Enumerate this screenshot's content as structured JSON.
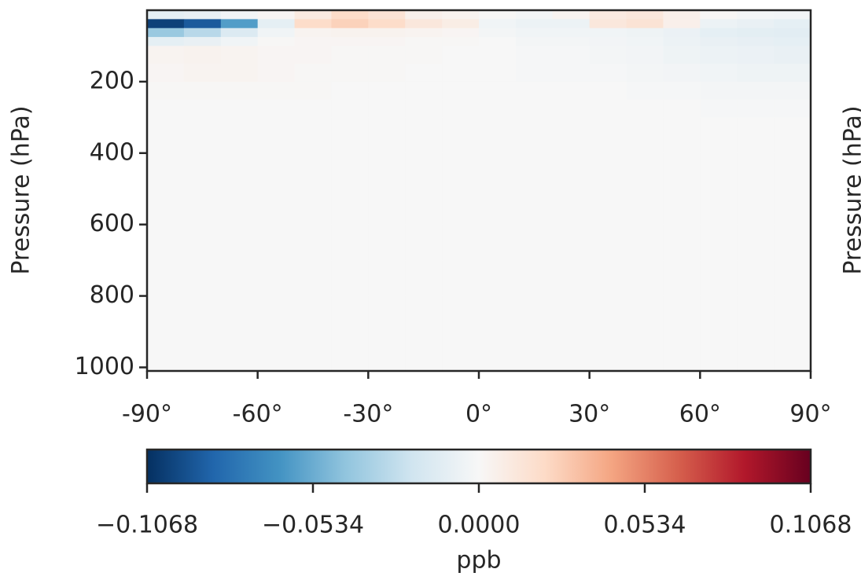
{
  "chart_data": {
    "type": "heatmap",
    "ylabel": "Pressure (hPa)",
    "neighbor_ylabel": "Pressure (hPa)",
    "xbins": [
      -90,
      -80,
      -70,
      -60,
      -50,
      -40,
      -30,
      -20,
      -10,
      0,
      10,
      20,
      30,
      40,
      50,
      60,
      70,
      80,
      90
    ],
    "ybins": [
      0,
      25,
      50,
      75,
      100,
      150,
      200,
      250,
      300,
      400,
      500,
      600,
      700,
      800,
      900,
      1010
    ],
    "values": [
      [
        -0.01,
        -0.008,
        -0.003,
        0.002,
        0.01,
        0.02,
        0.015,
        0.005,
        0.003,
        0.001,
        -0.002,
        0.003,
        0.01,
        0.012,
        0.006,
        0.001,
        -0.002,
        -0.003
      ],
      [
        -0.1,
        -0.09,
        -0.06,
        -0.01,
        0.02,
        0.025,
        0.02,
        0.012,
        0.008,
        -0.004,
        -0.006,
        -0.006,
        0.012,
        0.015,
        0.006,
        -0.006,
        -0.008,
        -0.01
      ],
      [
        -0.04,
        -0.03,
        -0.015,
        -0.004,
        0.003,
        0.004,
        0.004,
        0.003,
        0.002,
        -0.002,
        -0.004,
        -0.004,
        -0.004,
        -0.005,
        -0.007,
        -0.01,
        -0.011,
        -0.012
      ],
      [
        -0.01,
        -0.008,
        -0.004,
        0.001,
        0.002,
        0.002,
        0.002,
        0.001,
        0.001,
        0,
        -0.002,
        -0.002,
        -0.003,
        -0.004,
        -0.006,
        -0.008,
        -0.009,
        -0.01
      ],
      [
        0.003,
        0.004,
        0.003,
        0.002,
        0.002,
        0.001,
        0.001,
        0.001,
        0,
        0,
        -0.001,
        -0.001,
        -0.002,
        -0.003,
        -0.005,
        -0.006,
        -0.007,
        -0.008
      ],
      [
        0.002,
        0.003,
        0.003,
        0.002,
        0.001,
        0.001,
        0.001,
        0,
        0,
        0,
        -0.001,
        -0.001,
        -0.001,
        -0.002,
        -0.003,
        -0.004,
        -0.005,
        -0.005
      ],
      [
        0.001,
        0.001,
        0.001,
        0.001,
        0.001,
        0,
        0,
        0,
        0,
        0,
        0,
        0,
        0,
        -0.001,
        -0.001,
        -0.002,
        -0.002,
        -0.002
      ],
      [
        0,
        0,
        0,
        0,
        0,
        0,
        0,
        0,
        0,
        0,
        0,
        0,
        0,
        0,
        0,
        -0.001,
        -0.001,
        -0.001
      ],
      [
        0,
        0,
        0,
        0,
        0,
        0,
        0,
        0,
        0,
        0,
        0,
        0,
        0,
        0,
        0,
        0,
        0,
        0
      ],
      [
        0,
        0,
        0,
        0,
        0,
        0,
        0,
        0,
        0,
        0,
        0,
        0,
        0,
        0,
        0,
        0,
        0,
        0
      ],
      [
        0,
        0,
        0,
        0,
        0,
        0,
        0,
        0,
        0,
        0,
        0,
        0,
        0,
        0,
        0,
        0,
        0,
        0
      ],
      [
        0,
        0,
        0,
        0,
        0,
        0,
        0,
        0,
        0,
        0,
        0,
        0,
        0,
        0,
        0,
        0,
        0,
        0
      ],
      [
        0,
        0,
        0,
        0,
        0,
        0,
        0,
        0,
        0,
        0,
        0,
        0,
        0,
        0,
        0,
        0,
        0,
        0
      ],
      [
        0,
        0,
        0,
        0,
        0,
        0,
        0,
        0,
        0,
        0,
        0,
        0,
        0,
        0,
        0,
        0,
        0,
        0
      ],
      [
        0,
        0,
        0,
        0,
        0,
        0,
        0,
        0,
        0,
        0,
        0,
        0,
        0,
        0,
        0,
        0,
        0,
        0
      ]
    ],
    "xlim": [
      -90,
      90
    ],
    "xticks": [
      {
        "value": -90,
        "label": "-90°"
      },
      {
        "value": -60,
        "label": "-60°"
      },
      {
        "value": -30,
        "label": "-30°"
      },
      {
        "value": 0,
        "label": "0°"
      },
      {
        "value": 30,
        "label": "30°"
      },
      {
        "value": 60,
        "label": "60°"
      },
      {
        "value": 90,
        "label": "90°"
      }
    ],
    "ylim": [
      1010,
      0
    ],
    "yticks": [
      200,
      400,
      600,
      800,
      1000
    ],
    "colormap": [
      "#053061",
      "#2166ac",
      "#4393c3",
      "#92c5de",
      "#d1e5f0",
      "#f7f7f7",
      "#fddbc7",
      "#f4a582",
      "#d6604d",
      "#b2182b",
      "#67001f"
    ],
    "clim": [
      -0.1068,
      0.1068
    ],
    "cticks": [
      {
        "value": -0.1068,
        "label": "−0.1068"
      },
      {
        "value": -0.0534,
        "label": "−0.0534"
      },
      {
        "value": 0,
        "label": "0.0000"
      },
      0.0534,
      0.1068
    ],
    "clabel": "ppb"
  }
}
